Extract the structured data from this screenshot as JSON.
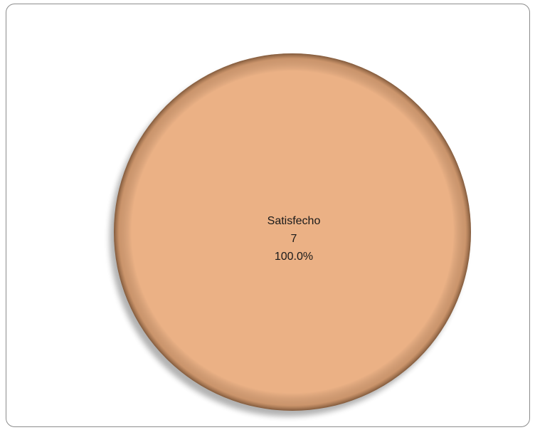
{
  "chart_data": {
    "type": "pie",
    "categories": [
      "Satisfecho"
    ],
    "values": [
      7
    ],
    "percentages": [
      100
    ],
    "percentage_labels": [
      "100.0%"
    ],
    "colors": [
      "#ebb185"
    ]
  }
}
